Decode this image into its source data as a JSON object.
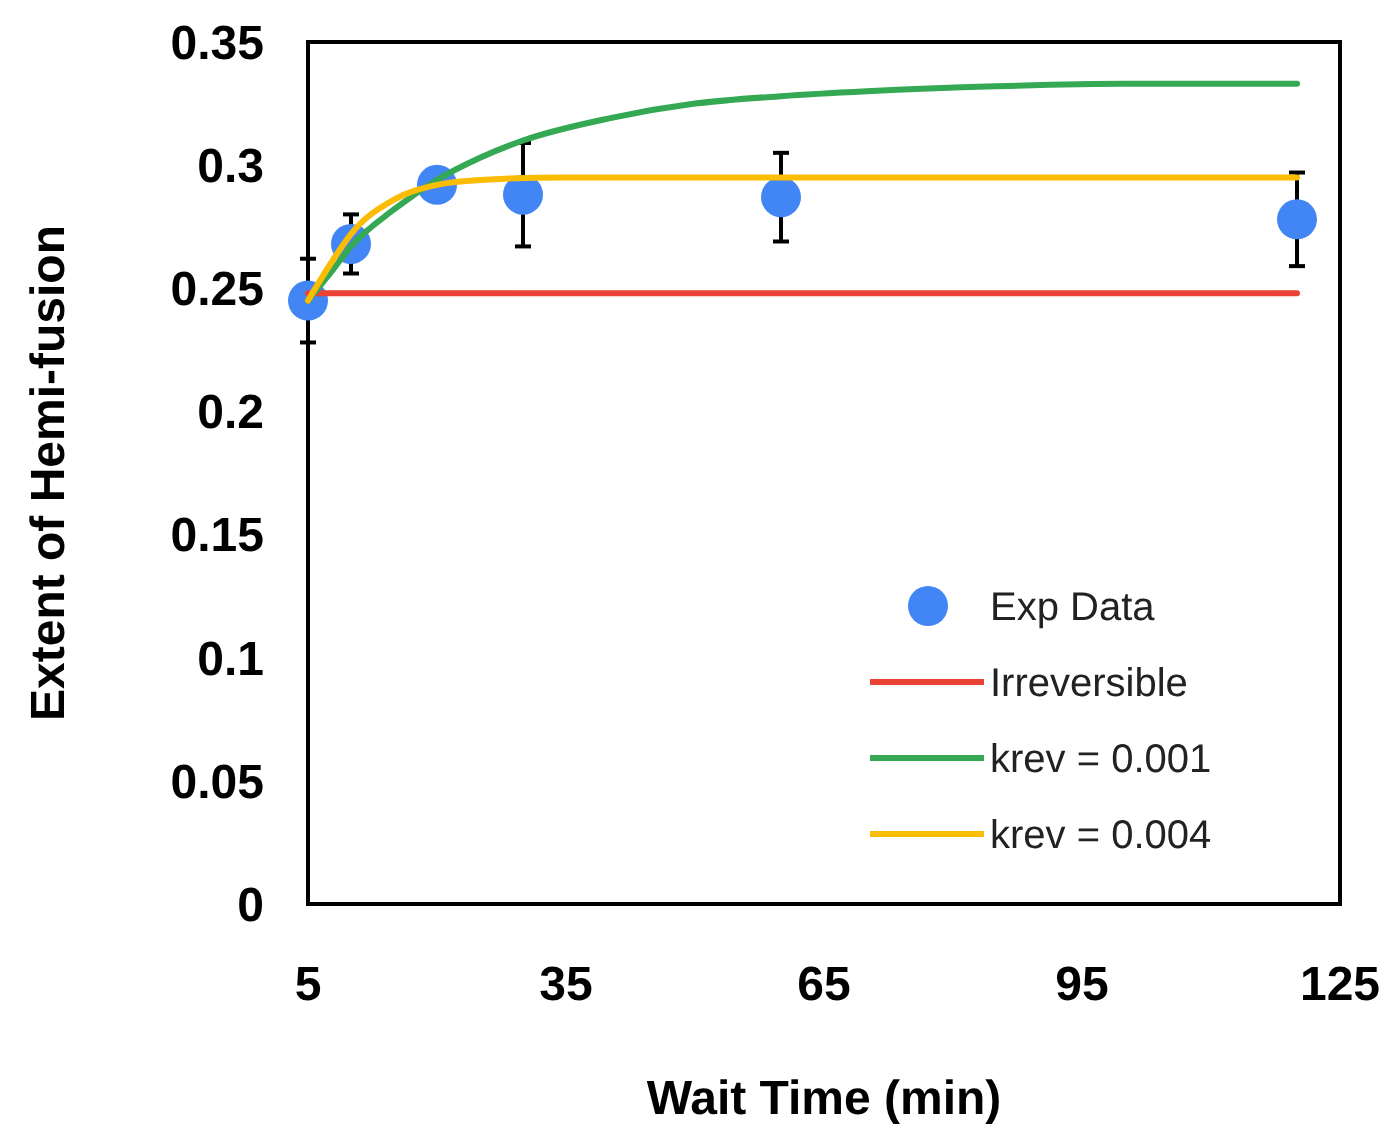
{
  "chart_data": {
    "type": "line",
    "xlabel": "Wait Time (min)",
    "ylabel": "Extent of Hemi-fusion",
    "xlim": [
      5,
      125
    ],
    "xticks": [
      5,
      35,
      65,
      95,
      125
    ],
    "ylim": [
      0,
      0.35
    ],
    "yticks": [
      0,
      0.05,
      0.1,
      0.15,
      0.2,
      0.25,
      0.3,
      0.35
    ],
    "grid": false,
    "legend": "bottom right",
    "series": [
      {
        "name": "Exp Data",
        "type": "scatter",
        "marker": "circle",
        "color": "#4285f4",
        "x": [
          5,
          10,
          20,
          30,
          60,
          120
        ],
        "values": [
          0.245,
          0.268,
          0.292,
          0.288,
          0.287,
          0.278
        ],
        "errors": [
          0.017,
          0.012,
          null,
          0.021,
          0.018,
          0.019
        ]
      },
      {
        "name": "Irreversible",
        "color": "#ea4335",
        "x": [
          5,
          120
        ],
        "values": [
          0.248,
          0.248
        ]
      },
      {
        "name": "krev = 0.001",
        "color": "#34a853",
        "x": [
          5,
          8,
          10,
          15,
          20,
          25,
          30,
          40,
          50,
          60,
          70,
          85,
          100,
          120
        ],
        "values": [
          0.245,
          0.258,
          0.267,
          0.282,
          0.294,
          0.303,
          0.31,
          0.319,
          0.325,
          0.328,
          0.33,
          0.332,
          0.333,
          0.333
        ]
      },
      {
        "name": "krev = 0.004",
        "color": "#fbbc04",
        "x": [
          5,
          8,
          10,
          15,
          20,
          25,
          35,
          120
        ],
        "values": [
          0.245,
          0.262,
          0.272,
          0.286,
          0.292,
          0.294,
          0.295,
          0.295
        ]
      }
    ]
  }
}
